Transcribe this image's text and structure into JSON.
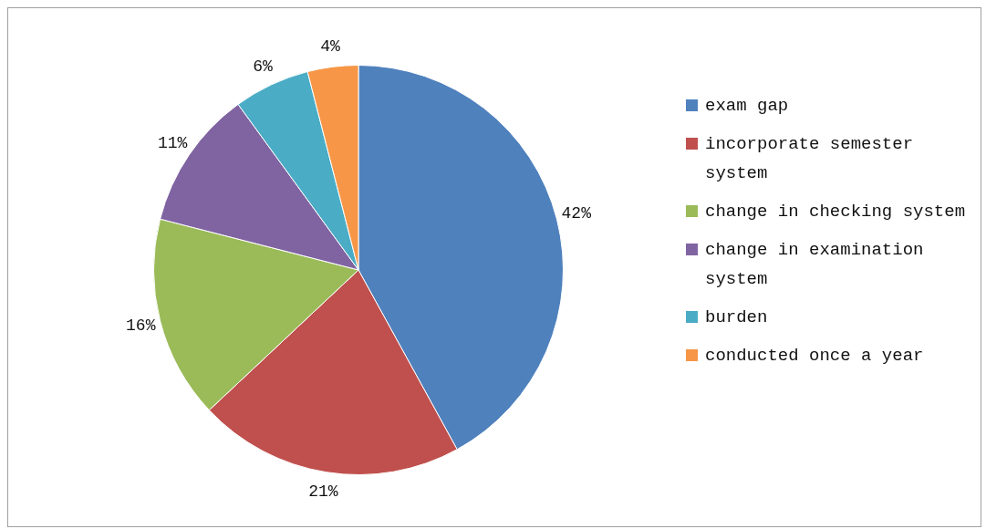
{
  "chart_data": {
    "type": "pie",
    "categories": [
      "exam gap",
      "incorporate semester system",
      "change in checking system",
      "change in examination system",
      "burden",
      "conducted once a year"
    ],
    "values": [
      42,
      21,
      16,
      11,
      6,
      4
    ],
    "colors": [
      "#4f81bd",
      "#c0504d",
      "#9bbb59",
      "#8064a2",
      "#4bacc6",
      "#f79646"
    ],
    "value_labels": [
      "42%",
      "21%",
      "16%",
      "11%",
      "6%",
      "4%"
    ],
    "legend": "right"
  }
}
